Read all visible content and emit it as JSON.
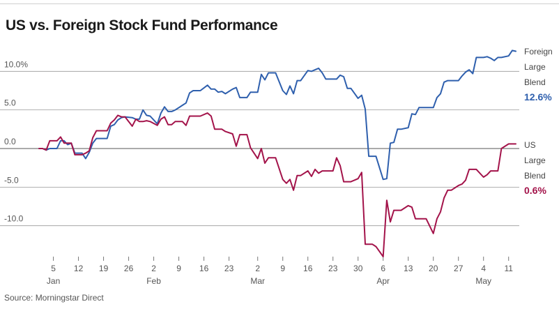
{
  "title": "US vs. Foreign Stock Fund Performance",
  "source": "Source: Morningstar Direct",
  "colors": {
    "foreign": "#2e5fad",
    "us": "#a3134a",
    "grid": "#999999",
    "zero_line": "#555555"
  },
  "chart_data": {
    "type": "line",
    "title": "US vs. Foreign Stock Fund Performance",
    "xlabel": "",
    "ylabel": "",
    "ylim": [
      -14.3,
      12.5
    ],
    "y_ticks": [
      10,
      5,
      0,
      -5,
      -10
    ],
    "y_tick_labels": [
      "10.0%",
      "5.0",
      "0.0",
      "-5.0",
      "-10.0"
    ],
    "x_ticks": [
      {
        "date": "2020-01-05",
        "day": "5",
        "month": "Jan"
      },
      {
        "date": "2020-01-12",
        "day": "12",
        "month": ""
      },
      {
        "date": "2020-01-19",
        "day": "19",
        "month": ""
      },
      {
        "date": "2020-01-26",
        "day": "26",
        "month": ""
      },
      {
        "date": "2020-02-02",
        "day": "2",
        "month": "Feb"
      },
      {
        "date": "2020-02-09",
        "day": "9",
        "month": ""
      },
      {
        "date": "2020-02-16",
        "day": "16",
        "month": ""
      },
      {
        "date": "2020-02-23",
        "day": "23",
        "month": ""
      },
      {
        "date": "2020-03-02",
        "day": "2",
        "month": "Mar"
      },
      {
        "date": "2020-03-09",
        "day": "9",
        "month": ""
      },
      {
        "date": "2020-03-16",
        "day": "16",
        "month": ""
      },
      {
        "date": "2020-03-23",
        "day": "23",
        "month": ""
      },
      {
        "date": "2020-03-30",
        "day": "30",
        "month": ""
      },
      {
        "date": "2020-04-06",
        "day": "6",
        "month": "Apr"
      },
      {
        "date": "2020-04-13",
        "day": "13",
        "month": ""
      },
      {
        "date": "2020-04-20",
        "day": "20",
        "month": ""
      },
      {
        "date": "2020-04-27",
        "day": "27",
        "month": ""
      },
      {
        "date": "2020-05-04",
        "day": "4",
        "month": "May"
      },
      {
        "date": "2020-05-11",
        "day": "11",
        "month": ""
      }
    ],
    "grid": "horizontal",
    "legend": "right, at line ends",
    "series": [
      {
        "name": "Foreign Large Blend",
        "legend_lines": [
          "Foreign",
          "Large",
          "Blend"
        ],
        "final_label": "12.6%",
        "color": "#2e5fad",
        "points": [
          [
            "2020-01-01",
            0.0
          ],
          [
            "2020-01-02",
            0.0
          ],
          [
            "2020-01-03",
            -0.2
          ],
          [
            "2020-01-04",
            0.0
          ],
          [
            "2020-01-06",
            0.0
          ],
          [
            "2020-01-07",
            1.0
          ],
          [
            "2020-01-08",
            1.0
          ],
          [
            "2020-01-09",
            0.5
          ],
          [
            "2020-01-10",
            0.7
          ],
          [
            "2020-01-11",
            -0.6
          ],
          [
            "2020-01-13",
            -0.6
          ],
          [
            "2020-01-14",
            -1.3
          ],
          [
            "2020-01-15",
            -0.5
          ],
          [
            "2020-01-16",
            0.7
          ],
          [
            "2020-01-17",
            1.3
          ],
          [
            "2020-01-18",
            1.3
          ],
          [
            "2020-01-20",
            1.3
          ],
          [
            "2020-01-21",
            2.9
          ],
          [
            "2020-01-22",
            3.1
          ],
          [
            "2020-01-23",
            3.7
          ],
          [
            "2020-01-24",
            4.0
          ],
          [
            "2020-01-25",
            4.1
          ],
          [
            "2020-01-27",
            4.0
          ],
          [
            "2020-01-28",
            3.8
          ],
          [
            "2020-01-29",
            3.8
          ],
          [
            "2020-01-30",
            5.0
          ],
          [
            "2020-01-31",
            4.3
          ],
          [
            "2020-02-01",
            4.2
          ],
          [
            "2020-02-03",
            3.2
          ],
          [
            "2020-02-04",
            4.6
          ],
          [
            "2020-02-05",
            5.4
          ],
          [
            "2020-02-06",
            4.8
          ],
          [
            "2020-02-07",
            4.8
          ],
          [
            "2020-02-08",
            5.0
          ],
          [
            "2020-02-10",
            5.6
          ],
          [
            "2020-02-11",
            5.9
          ],
          [
            "2020-02-12",
            7.2
          ],
          [
            "2020-02-13",
            7.5
          ],
          [
            "2020-02-14",
            7.5
          ],
          [
            "2020-02-15",
            7.5
          ],
          [
            "2020-02-17",
            8.2
          ],
          [
            "2020-02-18",
            7.7
          ],
          [
            "2020-02-19",
            7.7
          ],
          [
            "2020-02-20",
            7.3
          ],
          [
            "2020-02-21",
            7.4
          ],
          [
            "2020-02-22",
            7.1
          ],
          [
            "2020-02-24",
            7.7
          ],
          [
            "2020-02-25",
            7.9
          ],
          [
            "2020-02-26",
            6.6
          ],
          [
            "2020-02-27",
            6.6
          ],
          [
            "2020-02-28",
            6.6
          ],
          [
            "2020-02-29",
            7.3
          ],
          [
            "2020-03-02",
            7.3
          ],
          [
            "2020-03-03",
            9.6
          ],
          [
            "2020-03-04",
            8.9
          ],
          [
            "2020-03-05",
            9.8
          ],
          [
            "2020-03-06",
            9.8
          ],
          [
            "2020-03-07",
            9.8
          ],
          [
            "2020-03-09",
            7.5
          ],
          [
            "2020-03-10",
            7.0
          ],
          [
            "2020-03-11",
            8.1
          ],
          [
            "2020-03-12",
            7.1
          ],
          [
            "2020-03-13",
            8.8
          ],
          [
            "2020-03-14",
            8.8
          ],
          [
            "2020-03-16",
            10.1
          ],
          [
            "2020-03-17",
            10.0
          ],
          [
            "2020-03-18",
            10.2
          ],
          [
            "2020-03-19",
            10.4
          ],
          [
            "2020-03-20",
            9.8
          ],
          [
            "2020-03-21",
            9.0
          ],
          [
            "2020-03-23",
            9.0
          ],
          [
            "2020-03-24",
            9.0
          ],
          [
            "2020-03-25",
            9.5
          ],
          [
            "2020-03-26",
            9.3
          ],
          [
            "2020-03-27",
            7.8
          ],
          [
            "2020-03-28",
            7.8
          ],
          [
            "2020-03-30",
            6.5
          ],
          [
            "2020-03-31",
            6.9
          ],
          [
            "2020-04-01",
            5.1
          ],
          [
            "2020-04-02",
            -1.0
          ],
          [
            "2020-04-03",
            -1.0
          ],
          [
            "2020-04-04",
            -1.0
          ],
          [
            "2020-04-06",
            -4.0
          ],
          [
            "2020-04-07",
            -3.9
          ],
          [
            "2020-04-08",
            0.7
          ],
          [
            "2020-04-09",
            0.8
          ],
          [
            "2020-04-10",
            2.5
          ],
          [
            "2020-04-11",
            2.5
          ],
          [
            "2020-04-13",
            2.7
          ],
          [
            "2020-04-14",
            4.5
          ],
          [
            "2020-04-15",
            4.4
          ],
          [
            "2020-04-16",
            5.3
          ],
          [
            "2020-04-17",
            5.3
          ],
          [
            "2020-04-18",
            5.3
          ],
          [
            "2020-04-20",
            5.3
          ],
          [
            "2020-04-21",
            6.6
          ],
          [
            "2020-04-22",
            7.1
          ],
          [
            "2020-04-23",
            8.6
          ],
          [
            "2020-04-24",
            8.8
          ],
          [
            "2020-04-25",
            8.8
          ],
          [
            "2020-04-27",
            8.8
          ],
          [
            "2020-04-28",
            9.4
          ],
          [
            "2020-04-29",
            9.9
          ],
          [
            "2020-04-30",
            10.2
          ],
          [
            "2020-05-01",
            9.7
          ],
          [
            "2020-05-02",
            11.8
          ],
          [
            "2020-05-04",
            11.8
          ],
          [
            "2020-05-05",
            11.9
          ],
          [
            "2020-05-06",
            11.7
          ],
          [
            "2020-05-07",
            11.4
          ],
          [
            "2020-05-08",
            11.8
          ],
          [
            "2020-05-09",
            11.8
          ],
          [
            "2020-05-11",
            12.0
          ],
          [
            "2020-05-12",
            12.7
          ],
          [
            "2020-05-13",
            12.6
          ]
        ]
      },
      {
        "name": "US Large Blend",
        "legend_lines": [
          "US",
          "Large",
          "Blend"
        ],
        "final_label": "0.6%",
        "color": "#a3134a",
        "points": [
          [
            "2020-01-01",
            0.0
          ],
          [
            "2020-01-02",
            0.0
          ],
          [
            "2020-01-03",
            -0.2
          ],
          [
            "2020-01-04",
            1.0
          ],
          [
            "2020-01-06",
            1.0
          ],
          [
            "2020-01-07",
            1.5
          ],
          [
            "2020-01-08",
            0.7
          ],
          [
            "2020-01-09",
            0.7
          ],
          [
            "2020-01-10",
            0.7
          ],
          [
            "2020-01-11",
            -0.8
          ],
          [
            "2020-01-13",
            -0.8
          ],
          [
            "2020-01-14",
            -0.6
          ],
          [
            "2020-01-15",
            -0.3
          ],
          [
            "2020-01-16",
            1.4
          ],
          [
            "2020-01-17",
            2.3
          ],
          [
            "2020-01-18",
            2.3
          ],
          [
            "2020-01-20",
            2.3
          ],
          [
            "2020-01-21",
            3.3
          ],
          [
            "2020-01-22",
            3.7
          ],
          [
            "2020-01-23",
            4.3
          ],
          [
            "2020-01-24",
            4.1
          ],
          [
            "2020-01-25",
            4.1
          ],
          [
            "2020-01-27",
            2.9
          ],
          [
            "2020-01-28",
            3.8
          ],
          [
            "2020-01-29",
            3.5
          ],
          [
            "2020-01-30",
            3.5
          ],
          [
            "2020-01-31",
            3.6
          ],
          [
            "2020-02-01",
            3.5
          ],
          [
            "2020-02-03",
            3.0
          ],
          [
            "2020-02-04",
            3.8
          ],
          [
            "2020-02-05",
            4.1
          ],
          [
            "2020-02-06",
            3.1
          ],
          [
            "2020-02-07",
            3.1
          ],
          [
            "2020-02-08",
            3.5
          ],
          [
            "2020-02-10",
            3.5
          ],
          [
            "2020-02-11",
            3.0
          ],
          [
            "2020-02-12",
            4.2
          ],
          [
            "2020-02-13",
            4.2
          ],
          [
            "2020-02-14",
            4.2
          ],
          [
            "2020-02-15",
            4.2
          ],
          [
            "2020-02-17",
            4.6
          ],
          [
            "2020-02-18",
            4.2
          ],
          [
            "2020-02-19",
            2.5
          ],
          [
            "2020-02-20",
            2.5
          ],
          [
            "2020-02-21",
            2.5
          ],
          [
            "2020-02-22",
            2.2
          ],
          [
            "2020-02-24",
            1.9
          ],
          [
            "2020-02-25",
            0.3
          ],
          [
            "2020-02-26",
            1.8
          ],
          [
            "2020-02-27",
            1.8
          ],
          [
            "2020-02-28",
            1.8
          ],
          [
            "2020-02-29",
            0.1
          ],
          [
            "2020-03-02",
            -1.3
          ],
          [
            "2020-03-03",
            0.0
          ],
          [
            "2020-03-04",
            -1.9
          ],
          [
            "2020-03-05",
            -1.2
          ],
          [
            "2020-03-06",
            -1.2
          ],
          [
            "2020-03-07",
            -1.2
          ],
          [
            "2020-03-09",
            -4.0
          ],
          [
            "2020-03-10",
            -4.5
          ],
          [
            "2020-03-11",
            -4.0
          ],
          [
            "2020-03-12",
            -5.4
          ],
          [
            "2020-03-13",
            -3.5
          ],
          [
            "2020-03-14",
            -3.5
          ],
          [
            "2020-03-16",
            -2.9
          ],
          [
            "2020-03-17",
            -3.6
          ],
          [
            "2020-03-18",
            -2.7
          ],
          [
            "2020-03-19",
            -3.2
          ],
          [
            "2020-03-20",
            -2.9
          ],
          [
            "2020-03-21",
            -2.9
          ],
          [
            "2020-03-23",
            -2.9
          ],
          [
            "2020-03-24",
            -1.2
          ],
          [
            "2020-03-25",
            -2.2
          ],
          [
            "2020-03-26",
            -4.3
          ],
          [
            "2020-03-27",
            -4.3
          ],
          [
            "2020-03-28",
            -4.3
          ],
          [
            "2020-03-30",
            -3.9
          ],
          [
            "2020-03-31",
            -3.1
          ],
          [
            "2020-04-01",
            -12.4
          ],
          [
            "2020-04-02",
            -12.4
          ],
          [
            "2020-04-03",
            -12.4
          ],
          [
            "2020-04-04",
            -12.7
          ],
          [
            "2020-04-06",
            -14.0
          ],
          [
            "2020-04-07",
            -6.7
          ],
          [
            "2020-04-08",
            -9.5
          ],
          [
            "2020-04-09",
            -8.0
          ],
          [
            "2020-04-10",
            -8.0
          ],
          [
            "2020-04-11",
            -8.0
          ],
          [
            "2020-04-13",
            -7.4
          ],
          [
            "2020-04-14",
            -7.6
          ],
          [
            "2020-04-15",
            -9.1
          ],
          [
            "2020-04-16",
            -9.1
          ],
          [
            "2020-04-17",
            -9.1
          ],
          [
            "2020-04-18",
            -9.1
          ],
          [
            "2020-04-20",
            -11.0
          ],
          [
            "2020-04-21",
            -9.1
          ],
          [
            "2020-04-22",
            -8.2
          ],
          [
            "2020-04-23",
            -6.4
          ],
          [
            "2020-04-24",
            -5.4
          ],
          [
            "2020-04-25",
            -5.4
          ],
          [
            "2020-04-27",
            -4.8
          ],
          [
            "2020-04-28",
            -4.6
          ],
          [
            "2020-04-29",
            -4.1
          ],
          [
            "2020-04-30",
            -2.7
          ],
          [
            "2020-05-01",
            -2.7
          ],
          [
            "2020-05-02",
            -2.7
          ],
          [
            "2020-05-04",
            -3.7
          ],
          [
            "2020-05-05",
            -3.4
          ],
          [
            "2020-05-06",
            -2.9
          ],
          [
            "2020-05-07",
            -2.9
          ],
          [
            "2020-05-08",
            -2.9
          ],
          [
            "2020-05-09",
            0.0
          ],
          [
            "2020-05-11",
            0.6
          ],
          [
            "2020-05-12",
            0.6
          ],
          [
            "2020-05-13",
            0.6
          ]
        ]
      }
    ]
  }
}
